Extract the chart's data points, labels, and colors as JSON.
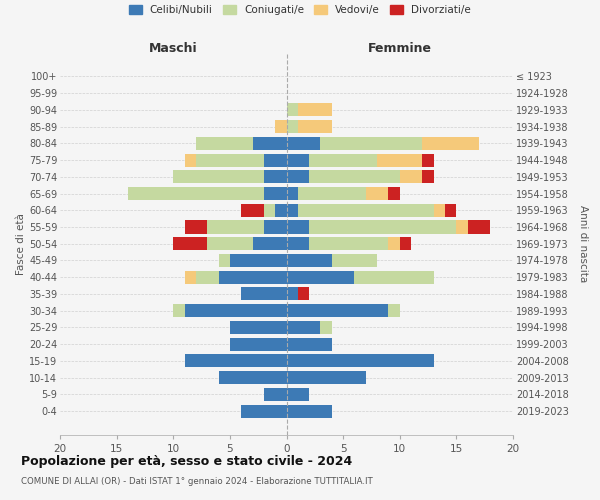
{
  "age_groups": [
    "0-4",
    "5-9",
    "10-14",
    "15-19",
    "20-24",
    "25-29",
    "30-34",
    "35-39",
    "40-44",
    "45-49",
    "50-54",
    "55-59",
    "60-64",
    "65-69",
    "70-74",
    "75-79",
    "80-84",
    "85-89",
    "90-94",
    "95-99",
    "100+"
  ],
  "birth_years": [
    "2019-2023",
    "2014-2018",
    "2009-2013",
    "2004-2008",
    "1999-2003",
    "1994-1998",
    "1989-1993",
    "1984-1988",
    "1979-1983",
    "1974-1978",
    "1969-1973",
    "1964-1968",
    "1959-1963",
    "1954-1958",
    "1949-1953",
    "1944-1948",
    "1939-1943",
    "1934-1938",
    "1929-1933",
    "1924-1928",
    "≤ 1923"
  ],
  "colors": {
    "celibi": "#3d7ab5",
    "coniugati": "#c5d9a0",
    "vedovi": "#f5c97a",
    "divorziati": "#cc2222"
  },
  "males": {
    "celibi": [
      4,
      2,
      6,
      9,
      5,
      5,
      9,
      4,
      6,
      5,
      3,
      2,
      1,
      2,
      2,
      2,
      3,
      0,
      0,
      0,
      0
    ],
    "coniugati": [
      0,
      0,
      0,
      0,
      0,
      0,
      1,
      0,
      2,
      1,
      4,
      5,
      1,
      12,
      8,
      6,
      5,
      0,
      0,
      0,
      0
    ],
    "vedovi": [
      0,
      0,
      0,
      0,
      0,
      0,
      0,
      0,
      1,
      0,
      0,
      0,
      0,
      0,
      0,
      1,
      0,
      1,
      0,
      0,
      0
    ],
    "divorziati": [
      0,
      0,
      0,
      0,
      0,
      0,
      0,
      0,
      0,
      0,
      3,
      2,
      2,
      0,
      0,
      0,
      0,
      0,
      0,
      0,
      0
    ]
  },
  "females": {
    "celibi": [
      4,
      2,
      7,
      13,
      4,
      3,
      9,
      1,
      6,
      4,
      2,
      2,
      1,
      1,
      2,
      2,
      3,
      0,
      0,
      0,
      0
    ],
    "coniugati": [
      0,
      0,
      0,
      0,
      0,
      1,
      1,
      0,
      7,
      4,
      7,
      13,
      12,
      6,
      8,
      6,
      9,
      1,
      1,
      0,
      0
    ],
    "vedovi": [
      0,
      0,
      0,
      0,
      0,
      0,
      0,
      0,
      0,
      0,
      1,
      1,
      1,
      2,
      2,
      4,
      5,
      3,
      3,
      0,
      0
    ],
    "divorziati": [
      0,
      0,
      0,
      0,
      0,
      0,
      0,
      1,
      0,
      0,
      1,
      2,
      1,
      1,
      1,
      1,
      0,
      0,
      0,
      0,
      0
    ]
  },
  "title": "Popolazione per età, sesso e stato civile - 2024",
  "subtitle": "COMUNE DI ALLAI (OR) - Dati ISTAT 1° gennaio 2024 - Elaborazione TUTTITALIA.IT",
  "xlabel_left": "Maschi",
  "xlabel_right": "Femmine",
  "ylabel_left": "Fasce di età",
  "ylabel_right": "Anni di nascita",
  "xlim": 20,
  "legend_labels": [
    "Celibi/Nubili",
    "Coniugati/e",
    "Vedovi/e",
    "Divorziati/e"
  ],
  "bg_color": "#f5f5f5",
  "grid_color": "#cccccc"
}
